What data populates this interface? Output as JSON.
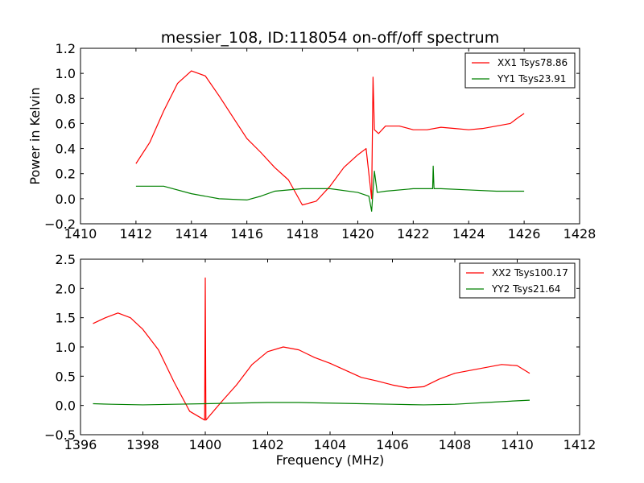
{
  "figure": {
    "title": "messier_108, ID:118054 on-off/off spectrum",
    "xlabel": "Frequency (MHz)",
    "ylabel": "Power in Kelvin"
  },
  "chart_data": [
    {
      "type": "line",
      "title": "messier_108, ID:118054 on-off/off spectrum",
      "xlabel": "",
      "ylabel": "Power in Kelvin",
      "xlim": [
        1410,
        1428
      ],
      "ylim": [
        -0.2,
        1.2
      ],
      "xticks": [
        1410,
        1412,
        1414,
        1416,
        1418,
        1420,
        1422,
        1424,
        1426,
        1428
      ],
      "yticks": [
        -0.2,
        0.0,
        0.2,
        0.4,
        0.6,
        0.8,
        1.0,
        1.2
      ],
      "ytick_labels": [
        "−0.2",
        "0.0",
        "0.2",
        "0.4",
        "0.6",
        "0.8",
        "1.0",
        "1.2"
      ],
      "grid": false,
      "legend": "top-right",
      "series": [
        {
          "name": "XX1 Tsys78.86",
          "color": "#ff0000",
          "x": [
            1412.0,
            1412.5,
            1413.0,
            1413.5,
            1414.0,
            1414.5,
            1415.0,
            1415.5,
            1416.0,
            1416.5,
            1417.0,
            1417.5,
            1418.0,
            1418.5,
            1419.0,
            1419.5,
            1420.0,
            1420.3,
            1420.5,
            1420.55,
            1420.6,
            1420.75,
            1421.0,
            1421.5,
            1422.0,
            1422.5,
            1423.0,
            1423.5,
            1424.0,
            1424.5,
            1425.0,
            1425.5,
            1425.8,
            1426.0
          ],
          "y": [
            0.28,
            0.45,
            0.7,
            0.92,
            1.02,
            0.98,
            0.82,
            0.65,
            0.48,
            0.37,
            0.25,
            0.15,
            -0.05,
            -0.02,
            0.1,
            0.25,
            0.35,
            0.4,
            0.0,
            0.97,
            0.55,
            0.52,
            0.58,
            0.58,
            0.55,
            0.55,
            0.57,
            0.56,
            0.55,
            0.56,
            0.58,
            0.6,
            0.65,
            0.68
          ]
        },
        {
          "name": "YY1 Tsys23.91",
          "color": "#008000",
          "x": [
            1412.0,
            1413.0,
            1414.0,
            1415.0,
            1416.0,
            1416.5,
            1417.0,
            1418.0,
            1419.0,
            1420.0,
            1420.4,
            1420.5,
            1420.6,
            1420.7,
            1421.0,
            1422.0,
            1422.7,
            1422.72,
            1422.75,
            1423.0,
            1424.0,
            1425.0,
            1426.0
          ],
          "y": [
            0.1,
            0.1,
            0.04,
            0.0,
            -0.01,
            0.02,
            0.06,
            0.08,
            0.08,
            0.05,
            0.02,
            -0.1,
            0.22,
            0.05,
            0.06,
            0.08,
            0.08,
            0.26,
            0.08,
            0.08,
            0.07,
            0.06,
            0.06
          ]
        }
      ]
    },
    {
      "type": "line",
      "title": "",
      "xlabel": "Frequency (MHz)",
      "ylabel": "",
      "xlim": [
        1396,
        1412
      ],
      "ylim": [
        -0.5,
        2.5
      ],
      "xticks": [
        1396,
        1398,
        1400,
        1402,
        1404,
        1406,
        1408,
        1410,
        1412
      ],
      "yticks": [
        -0.5,
        0.0,
        0.5,
        1.0,
        1.5,
        2.0,
        2.5
      ],
      "ytick_labels": [
        "−0.5",
        "0.0",
        "0.5",
        "1.0",
        "1.5",
        "2.0",
        "2.5"
      ],
      "grid": false,
      "legend": "top-right",
      "series": [
        {
          "name": "XX2 Tsys100.17",
          "color": "#ff0000",
          "x": [
            1396.4,
            1396.8,
            1397.2,
            1397.6,
            1398.0,
            1398.5,
            1399.0,
            1399.5,
            1399.98,
            1400.0,
            1400.02,
            1400.5,
            1401.0,
            1401.5,
            1402.0,
            1402.5,
            1403.0,
            1403.5,
            1404.0,
            1404.5,
            1405.0,
            1405.5,
            1406.0,
            1406.5,
            1407.0,
            1407.5,
            1408.0,
            1408.5,
            1409.0,
            1409.5,
            1410.0,
            1410.4
          ],
          "y": [
            1.4,
            1.5,
            1.58,
            1.5,
            1.3,
            0.95,
            0.4,
            -0.1,
            -0.25,
            2.18,
            -0.25,
            0.05,
            0.35,
            0.7,
            0.92,
            1.0,
            0.95,
            0.82,
            0.72,
            0.6,
            0.48,
            0.42,
            0.35,
            0.3,
            0.32,
            0.45,
            0.55,
            0.6,
            0.65,
            0.7,
            0.68,
            0.55
          ]
        },
        {
          "name": "YY2 Tsys21.64",
          "color": "#008000",
          "x": [
            1396.4,
            1397.0,
            1398.0,
            1399.0,
            1400.0,
            1401.0,
            1402.0,
            1403.0,
            1404.0,
            1405.0,
            1406.0,
            1407.0,
            1408.0,
            1409.0,
            1410.0,
            1410.4
          ],
          "y": [
            0.03,
            0.02,
            0.01,
            0.02,
            0.03,
            0.04,
            0.05,
            0.05,
            0.04,
            0.03,
            0.02,
            0.01,
            0.02,
            0.05,
            0.08,
            0.09
          ]
        }
      ]
    }
  ]
}
